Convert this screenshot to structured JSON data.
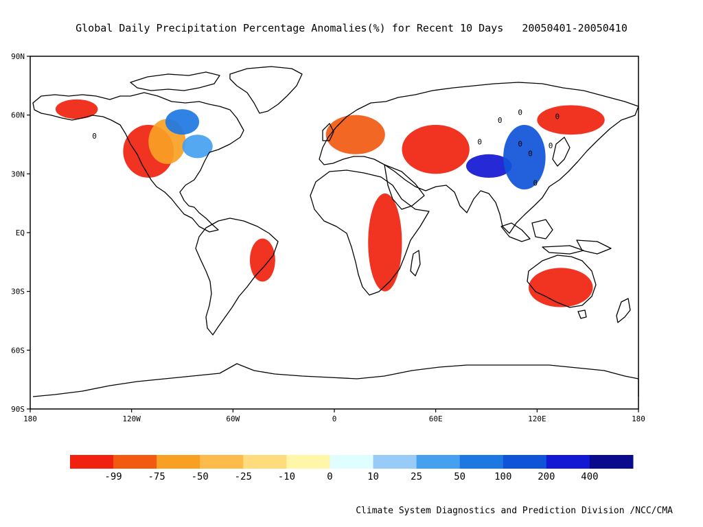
{
  "title": "Global Daily Precipitation Percentage Anomalies(%) for Recent 10 Days   20050401-20050410",
  "credit": "Climate System Diagnostics and Prediction Division /NCC/CMA",
  "map": {
    "lat_ticks": [
      "90N",
      "60N",
      "30N",
      "EQ",
      "30S",
      "60S",
      "90S"
    ],
    "lon_ticks": [
      "180",
      "120W",
      "60W",
      "0",
      "60E",
      "120E",
      "180"
    ],
    "lat_values": [
      90,
      60,
      30,
      0,
      -30,
      -60,
      -90
    ],
    "lon_values": [
      -180,
      -120,
      -60,
      0,
      60,
      120,
      180
    ],
    "contour_label": "0",
    "coastline_color": "#000000",
    "background": "#ffffff"
  },
  "colorbar": {
    "labels": [
      "-99",
      "-75",
      "-50",
      "-25",
      "-10",
      "0",
      "10",
      "25",
      "50",
      "100",
      "200",
      "400"
    ],
    "colors": [
      "#f0220f",
      "#f25a12",
      "#f8a024",
      "#fdbb4b",
      "#fedc7e",
      "#fff6a8",
      "#e0feff",
      "#98cbf7",
      "#45a0f0",
      "#1e78e2",
      "#0f54d8",
      "#1318d2",
      "#0a0a8c"
    ]
  },
  "anomaly_regions": [
    {
      "name": "western-north-america",
      "lon": [
        -125,
        -95
      ],
      "lat": [
        28,
        55
      ],
      "category": "-99"
    },
    {
      "name": "central-north-america",
      "lon": [
        -110,
        -88
      ],
      "lat": [
        35,
        58
      ],
      "category": "-50"
    },
    {
      "name": "canada-wet",
      "lon": [
        -100,
        -80
      ],
      "lat": [
        50,
        63
      ],
      "category": "100"
    },
    {
      "name": "great-lakes-wet",
      "lon": [
        -90,
        -72
      ],
      "lat": [
        38,
        50
      ],
      "category": "50"
    },
    {
      "name": "alaska-dry",
      "lon": [
        -165,
        -140
      ],
      "lat": [
        58,
        68
      ],
      "category": "-99"
    },
    {
      "name": "brazil-dry",
      "lon": [
        -50,
        -35
      ],
      "lat": [
        -25,
        -3
      ],
      "category": "-99"
    },
    {
      "name": "europe-mixed",
      "lon": [
        -5,
        30
      ],
      "lat": [
        40,
        60
      ],
      "category": "-75"
    },
    {
      "name": "central-asia-dry",
      "lon": [
        40,
        80
      ],
      "lat": [
        30,
        55
      ],
      "category": "-99"
    },
    {
      "name": "tibet-wet",
      "lon": [
        78,
        105
      ],
      "lat": [
        28,
        40
      ],
      "category": "400"
    },
    {
      "name": "china-wet",
      "lon": [
        100,
        125
      ],
      "lat": [
        22,
        55
      ],
      "category": "200"
    },
    {
      "name": "siberia-dry",
      "lon": [
        120,
        160
      ],
      "lat": [
        50,
        65
      ],
      "category": "-99"
    },
    {
      "name": "australia-dry",
      "lon": [
        115,
        153
      ],
      "lat": [
        -38,
        -18
      ],
      "category": "-99"
    },
    {
      "name": "africa-dry",
      "lon": [
        20,
        40
      ],
      "lat": [
        -30,
        20
      ],
      "category": "-99"
    }
  ]
}
